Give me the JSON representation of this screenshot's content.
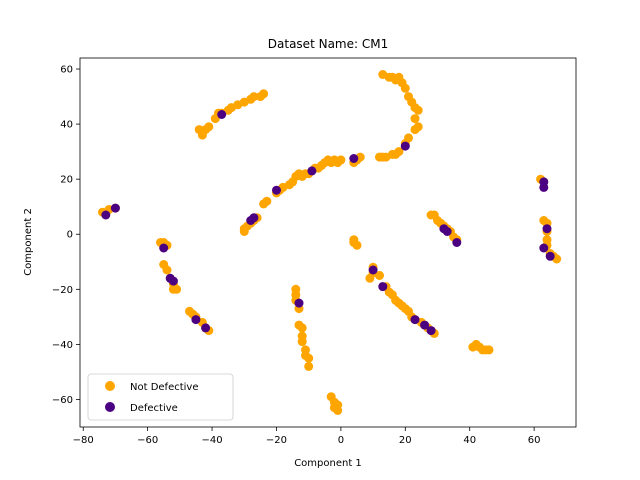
{
  "chart_data": {
    "type": "scatter",
    "title": "Dataset Name: CM1",
    "xlabel": "Component 1",
    "ylabel": "Component 2",
    "xlim": [
      -81,
      73
    ],
    "ylim": [
      -70,
      64
    ],
    "xticks": [
      -80,
      -60,
      -40,
      -20,
      0,
      20,
      40,
      60
    ],
    "yticks": [
      -60,
      -40,
      -20,
      0,
      20,
      40,
      60
    ],
    "grid": false,
    "legend": "lower-left",
    "series": [
      {
        "name": "Not Defective",
        "color": "#ffa500",
        "points": [
          [
            -74,
            8
          ],
          [
            -72,
            9
          ],
          [
            -70,
            9.5
          ],
          [
            -56,
            -3
          ],
          [
            -55,
            -4
          ],
          [
            -55,
            -3
          ],
          [
            -54,
            -4
          ],
          [
            -55,
            -11
          ],
          [
            -54,
            -13
          ],
          [
            -53,
            -16
          ],
          [
            -52,
            -18
          ],
          [
            -51,
            -20
          ],
          [
            -52,
            -20
          ],
          [
            -47,
            -28
          ],
          [
            -46,
            -29
          ],
          [
            -45,
            -30
          ],
          [
            -43,
            -32
          ],
          [
            -42,
            -34
          ],
          [
            -41,
            -35
          ],
          [
            -44,
            38
          ],
          [
            -43,
            37
          ],
          [
            -42,
            38
          ],
          [
            -43,
            36
          ],
          [
            -41,
            39
          ],
          [
            -39,
            42
          ],
          [
            -38,
            44
          ],
          [
            -37,
            44
          ],
          [
            -35,
            45
          ],
          [
            -34,
            46
          ],
          [
            -32,
            47
          ],
          [
            -30,
            48
          ],
          [
            -28,
            49
          ],
          [
            -27,
            50
          ],
          [
            -25,
            50
          ],
          [
            -24,
            51
          ],
          [
            -30,
            1
          ],
          [
            -30,
            2
          ],
          [
            -29,
            3
          ],
          [
            -28,
            4
          ],
          [
            -27,
            5
          ],
          [
            -26,
            6
          ],
          [
            -24,
            11
          ],
          [
            -23,
            12
          ],
          [
            -20,
            15
          ],
          [
            -19,
            16
          ],
          [
            -18,
            17
          ],
          [
            -16,
            18
          ],
          [
            -15,
            19
          ],
          [
            -14,
            21
          ],
          [
            -13,
            22
          ],
          [
            -12,
            21
          ],
          [
            -11,
            22
          ],
          [
            -10,
            22
          ],
          [
            -8,
            24
          ],
          [
            -7,
            24
          ],
          [
            -6,
            25
          ],
          [
            -5,
            26
          ],
          [
            -4,
            27
          ],
          [
            -3,
            26
          ],
          [
            -2,
            27
          ],
          [
            -1,
            26
          ],
          [
            0,
            27
          ],
          [
            4,
            26
          ],
          [
            5,
            27
          ],
          [
            6,
            28
          ],
          [
            4,
            -2
          ],
          [
            4,
            -3
          ],
          [
            5,
            -4
          ],
          [
            -14,
            -20
          ],
          [
            -14,
            -22
          ],
          [
            -14,
            -24
          ],
          [
            -13,
            -27
          ],
          [
            -13,
            -33
          ],
          [
            -12,
            -34
          ],
          [
            -12,
            -37
          ],
          [
            -12,
            -39
          ],
          [
            -11,
            -42
          ],
          [
            -11,
            -44
          ],
          [
            -10,
            -45
          ],
          [
            -10,
            -48
          ],
          [
            -3,
            -59
          ],
          [
            -2,
            -61
          ],
          [
            -2,
            -63
          ],
          [
            -1,
            -62
          ],
          [
            -1,
            -64
          ],
          [
            13,
            58
          ],
          [
            15,
            57
          ],
          [
            16,
            57
          ],
          [
            17,
            56
          ],
          [
            18,
            57
          ],
          [
            19,
            55
          ],
          [
            20,
            53
          ],
          [
            21,
            50
          ],
          [
            22,
            48
          ],
          [
            23,
            46
          ],
          [
            24,
            45
          ],
          [
            23,
            42
          ],
          [
            24,
            39
          ],
          [
            23,
            38
          ],
          [
            21,
            35
          ],
          [
            20,
            33
          ],
          [
            18,
            30
          ],
          [
            17,
            29
          ],
          [
            16,
            29
          ],
          [
            14,
            28
          ],
          [
            13,
            28
          ],
          [
            12,
            28
          ],
          [
            10,
            -12
          ],
          [
            9,
            -16
          ],
          [
            10,
            -14
          ],
          [
            12,
            -15
          ],
          [
            14,
            -19
          ],
          [
            15,
            -21
          ],
          [
            16,
            -22
          ],
          [
            17,
            -24
          ],
          [
            18,
            -25
          ],
          [
            19,
            -26
          ],
          [
            20,
            -27
          ],
          [
            21,
            -28
          ],
          [
            22,
            -30
          ],
          [
            23,
            -31
          ],
          [
            25,
            -32
          ],
          [
            26,
            -33
          ],
          [
            27,
            -34
          ],
          [
            28,
            -35
          ],
          [
            29,
            -36
          ],
          [
            28,
            7
          ],
          [
            29,
            7
          ],
          [
            30,
            5
          ],
          [
            31,
            4
          ],
          [
            32,
            3
          ],
          [
            33,
            2
          ],
          [
            34,
            1
          ],
          [
            35,
            -1
          ],
          [
            36,
            -2
          ],
          [
            41,
            -41
          ],
          [
            42,
            -40
          ],
          [
            43,
            -41
          ],
          [
            44,
            -42
          ],
          [
            45,
            -42
          ],
          [
            46,
            -42
          ],
          [
            62,
            20
          ],
          [
            63,
            19
          ],
          [
            63,
            5
          ],
          [
            64,
            4
          ],
          [
            64,
            1
          ],
          [
            64,
            -2
          ],
          [
            64,
            -4
          ],
          [
            65,
            -7
          ],
          [
            66,
            -8
          ],
          [
            67,
            -9
          ]
        ]
      },
      {
        "name": "Defective",
        "color": "#4b0082",
        "points": [
          [
            -73,
            7
          ],
          [
            -70,
            9.5
          ],
          [
            -55,
            -5
          ],
          [
            -53,
            -16
          ],
          [
            -52,
            -17
          ],
          [
            -45,
            -31
          ],
          [
            -42,
            -34
          ],
          [
            -37,
            43.5
          ],
          [
            -28,
            5
          ],
          [
            -27,
            6
          ],
          [
            -20,
            16
          ],
          [
            -13,
            -25
          ],
          [
            -9,
            23
          ],
          [
            4,
            27.5
          ],
          [
            10,
            -13
          ],
          [
            13,
            -19
          ],
          [
            20,
            32
          ],
          [
            23,
            -31
          ],
          [
            26,
            -33
          ],
          [
            28,
            -35
          ],
          [
            32,
            2
          ],
          [
            33,
            1
          ],
          [
            36,
            -3
          ],
          [
            63,
            19
          ],
          [
            63,
            17
          ],
          [
            64,
            2
          ],
          [
            63,
            -5
          ],
          [
            65,
            -8
          ]
        ]
      }
    ]
  }
}
